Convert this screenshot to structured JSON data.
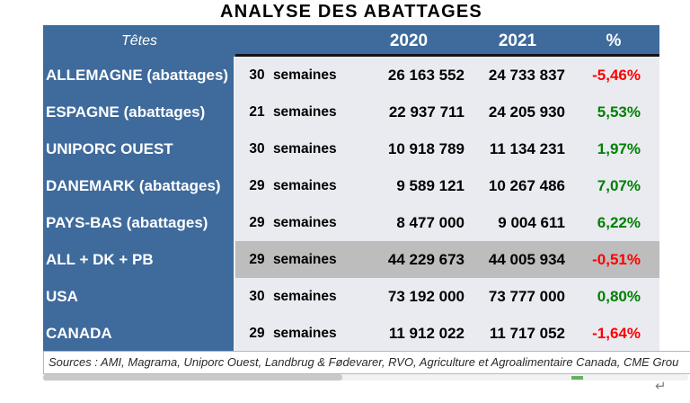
{
  "title": "ANALYSE DES ABATTAGES",
  "table": {
    "header": {
      "col_label": "Têtes",
      "col_2020": "2020",
      "col_2021": "2021",
      "col_pct": "%"
    },
    "rows": [
      {
        "label": "ALLEMAGNE (abattages)",
        "weeks": "30 semaines",
        "y2020": "26 163 552",
        "y2021": "24 733 837",
        "pct": "-5,46%",
        "trend": "negative",
        "highlight": false
      },
      {
        "label": "ESPAGNE (abattages)",
        "weeks": "21 semaines",
        "y2020": "22 937 711",
        "y2021": "24 205 930",
        "pct": "5,53%",
        "trend": "positive",
        "highlight": false
      },
      {
        "label": "UNIPORC OUEST",
        "weeks": "30 semaines",
        "y2020": "10 918 789",
        "y2021": "11 134 231",
        "pct": "1,97%",
        "trend": "positive",
        "highlight": false
      },
      {
        "label": "DANEMARK (abattages)",
        "weeks": "29 semaines",
        "y2020": "9 589 121",
        "y2021": "10 267 486",
        "pct": "7,07%",
        "trend": "positive",
        "highlight": false
      },
      {
        "label": "PAYS-BAS (abattages)",
        "weeks": "29 semaines",
        "y2020": "8 477 000",
        "y2021": "9 004 611",
        "pct": "6,22%",
        "trend": "positive",
        "highlight": false
      },
      {
        "label": "ALL + DK + PB",
        "weeks": "29 semaines",
        "y2020": "44 229 673",
        "y2021": "44 005 934",
        "pct": "-0,51%",
        "trend": "negative",
        "highlight": true
      },
      {
        "label": "USA",
        "weeks": "30 semaines",
        "y2020": "73 192 000",
        "y2021": "73 777 000",
        "pct": "0,80%",
        "trend": "positive",
        "highlight": false
      },
      {
        "label": "CANADA",
        "weeks": "29 semaines",
        "y2020": "11 912 022",
        "y2021": "11 717 052",
        "pct": "-1,64%",
        "trend": "negative",
        "highlight": false
      }
    ]
  },
  "footer": {
    "sources": "Sources : AMI, Magrama, Uniporc Ouest, Landbrug & Fødevarer, RVO, Agriculture et Agroalimentaire Canada, CME Grou"
  },
  "marks": {
    "return_mark": "↵"
  },
  "colors": {
    "header_blue": "#3e6a9c",
    "row_bg": "#e9ebf1",
    "highlight_row_bg": "#bdbdbd",
    "positive": "#008000",
    "negative": "#ff0000"
  }
}
